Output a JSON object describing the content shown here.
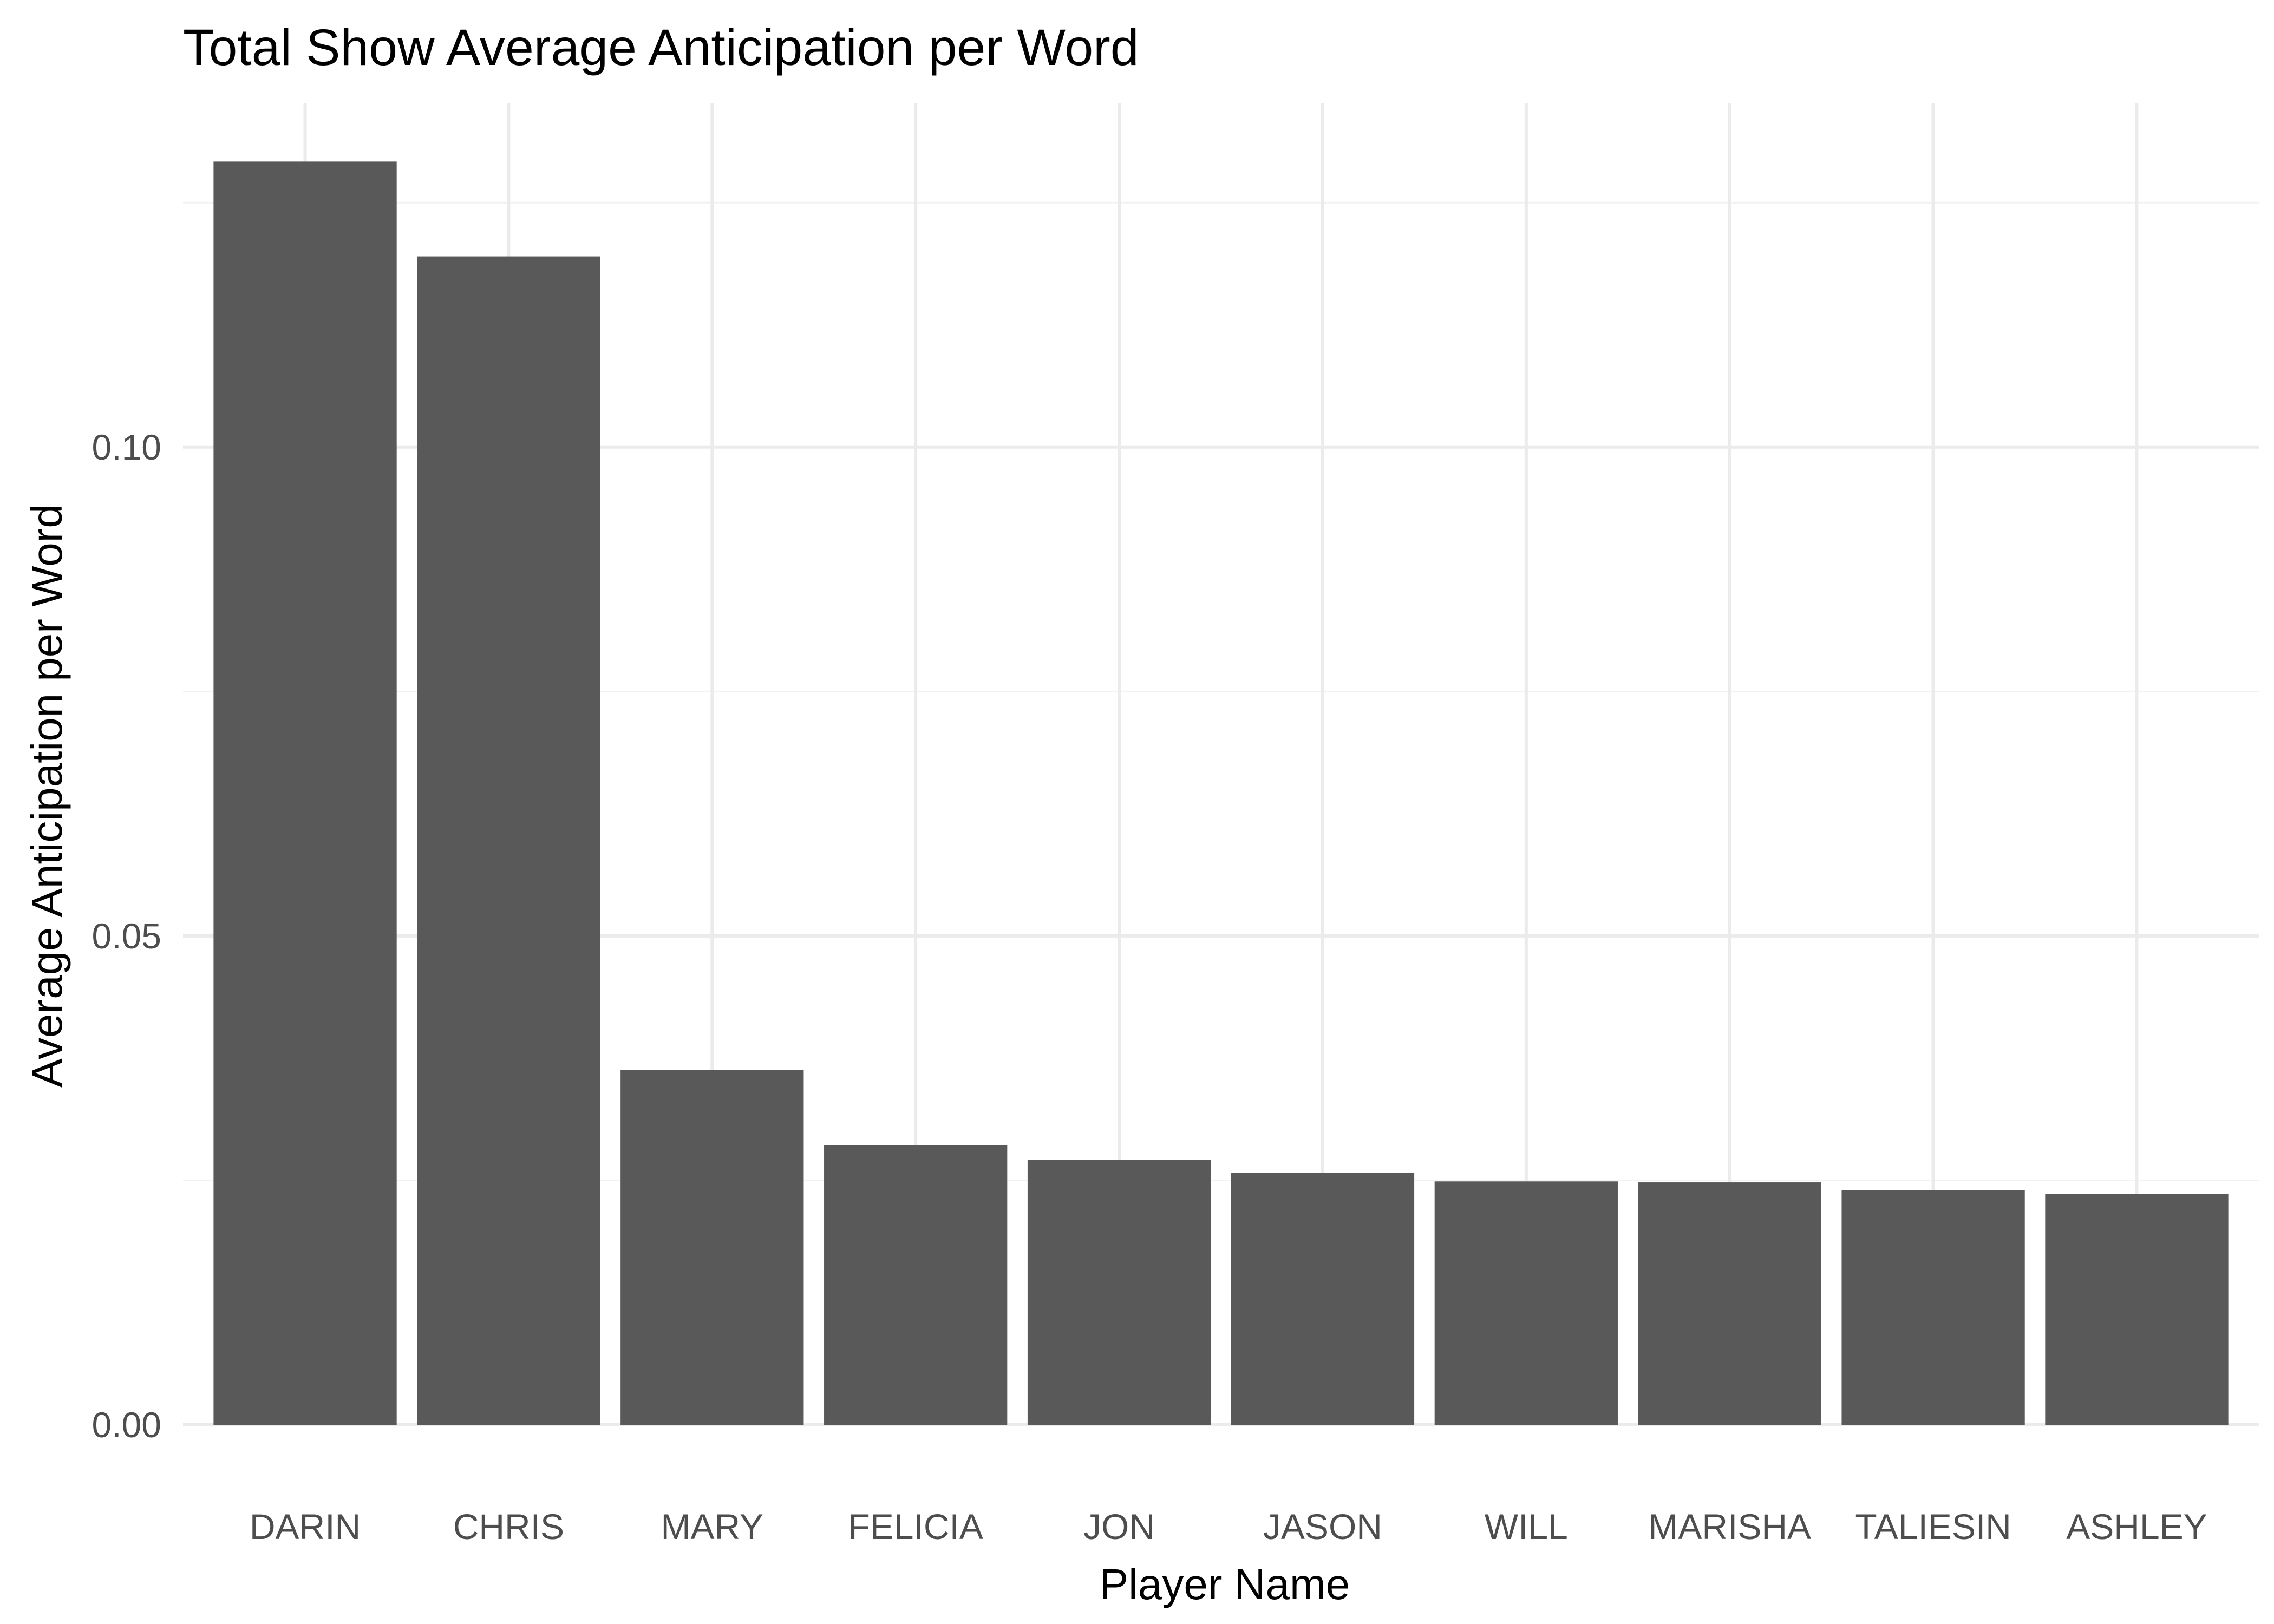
{
  "chart_data": {
    "type": "bar",
    "title": "Total Show Average Anticipation per Word",
    "xlabel": "Player Name",
    "ylabel": "Average Anticipation per Word",
    "categories": [
      "DARIN",
      "CHRIS",
      "MARY",
      "FELICIA",
      "JON",
      "JASON",
      "WILL",
      "MARISHA",
      "TALIESIN",
      "ASHLEY"
    ],
    "values": [
      0.1292,
      0.1195,
      0.0363,
      0.0286,
      0.0271,
      0.0258,
      0.0249,
      0.0248,
      0.024,
      0.0236
    ],
    "yticks": [
      "0.00",
      "0.05",
      "0.10"
    ],
    "ylim": [
      0,
      0.1352
    ],
    "grid": true,
    "legend": "none",
    "bar_color": "#595959",
    "grid_color": "#ebebeb",
    "background": "#ffffff"
  }
}
